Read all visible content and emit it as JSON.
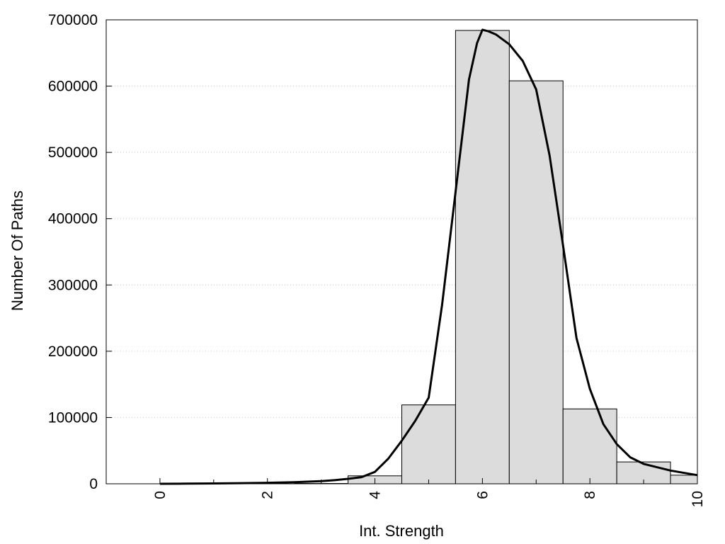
{
  "chart_data": {
    "type": "bar",
    "title": "",
    "xlabel": "Int. Strength",
    "ylabel": "Number Of Paths",
    "xlim": [
      -1,
      10
    ],
    "ylim": [
      0,
      700000
    ],
    "x_ticks": [
      0,
      2,
      4,
      6,
      8,
      10
    ],
    "x_tick_labels": [
      "0",
      "2",
      "4",
      "6",
      "8",
      "10"
    ],
    "y_ticks": [
      0,
      100000,
      200000,
      300000,
      400000,
      500000,
      600000,
      700000
    ],
    "y_tick_labels": [
      "0",
      "100000",
      "200000",
      "300000",
      "400000",
      "500000",
      "600000",
      "700000"
    ],
    "grid": "horizontal dotted",
    "bar_width": 1,
    "bar_color": "#dcdcdc",
    "bar_edge_color": "#000000",
    "categories": [
      0,
      1,
      2,
      3,
      4,
      5,
      6,
      7,
      8,
      9,
      10
    ],
    "values": [
      0,
      0,
      0,
      500,
      12000,
      119000,
      684000,
      608000,
      113000,
      33000,
      13000
    ],
    "curve": {
      "color": "#000000",
      "x": [
        0,
        0.5,
        1,
        1.5,
        2,
        2.5,
        3,
        3.25,
        3.5,
        3.75,
        4,
        4.25,
        4.5,
        4.75,
        5,
        5.25,
        5.5,
        5.75,
        5.9,
        6,
        6.1,
        6.25,
        6.5,
        6.75,
        7,
        7.25,
        7.5,
        7.75,
        8,
        8.25,
        8.5,
        8.75,
        9,
        9.5,
        10
      ],
      "y": [
        0,
        200,
        500,
        1000,
        1500,
        2500,
        4000,
        5500,
        7500,
        10000,
        18000,
        38000,
        65000,
        95000,
        130000,
        270000,
        440000,
        610000,
        665000,
        685000,
        683000,
        678000,
        663000,
        638000,
        595000,
        495000,
        360000,
        220000,
        143000,
        90000,
        60000,
        40000,
        30000,
        20000,
        13000
      ]
    }
  }
}
